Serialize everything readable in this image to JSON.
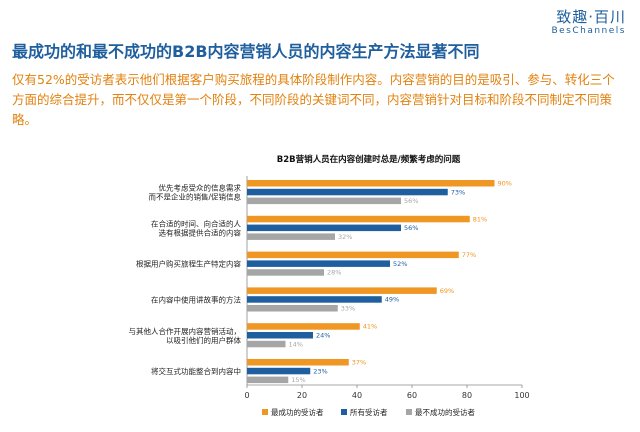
{
  "brand": {
    "name": "致趣·百川",
    "sub": "BesChannels"
  },
  "header": {
    "title": "最成功的和最不成功的B2B内容营销人员的内容生产方法显著不同",
    "intro": "仅有52%的受访者表示他们根据客户购买旅程的具体阶段制作内容。内容营销的目的是吸引、参与、转化三个方面的综合提升，而不仅仅是第一个阶段，不同阶段的关键词不同，内容营销针对目标和阶段不同制定不同策略。"
  },
  "colors": {
    "accent": "#1f5f9e",
    "intro": "#e2820f"
  },
  "chart_data": {
    "type": "bar",
    "orientation": "horizontal",
    "title": "B2B营销人员在内容创建时总是/频繁考虑的问题",
    "categories": [
      [
        "优先考虑受众的信息需求",
        "而不是企业的销售/促销信息"
      ],
      [
        "在合适的时间、向合适的人",
        "选有根据提供合适的内容"
      ],
      [
        "根据用户购买旅程生产特定内容"
      ],
      [
        "在内容中使用讲故事的方法"
      ],
      [
        "与其他人合作开展内容营销活动，",
        "以吸引他们的用户群体"
      ],
      [
        "将交互式功能整合到内容中"
      ]
    ],
    "series": [
      {
        "name": "最成功的受访者",
        "color": "#ef9623",
        "values": [
          90,
          81,
          77,
          69,
          41,
          37
        ]
      },
      {
        "name": "所有受访者",
        "color": "#1f5fa0",
        "values": [
          73,
          56,
          52,
          49,
          24,
          23
        ]
      },
      {
        "name": "最不成功的受访者",
        "color": "#a6a6a6",
        "values": [
          56,
          32,
          28,
          33,
          14,
          15
        ]
      }
    ],
    "xlim": [
      0,
      100
    ],
    "xticks": [
      0,
      20,
      40,
      60,
      80,
      100
    ],
    "value_suffix": "%",
    "legend_position": "bottom",
    "grid": false
  }
}
